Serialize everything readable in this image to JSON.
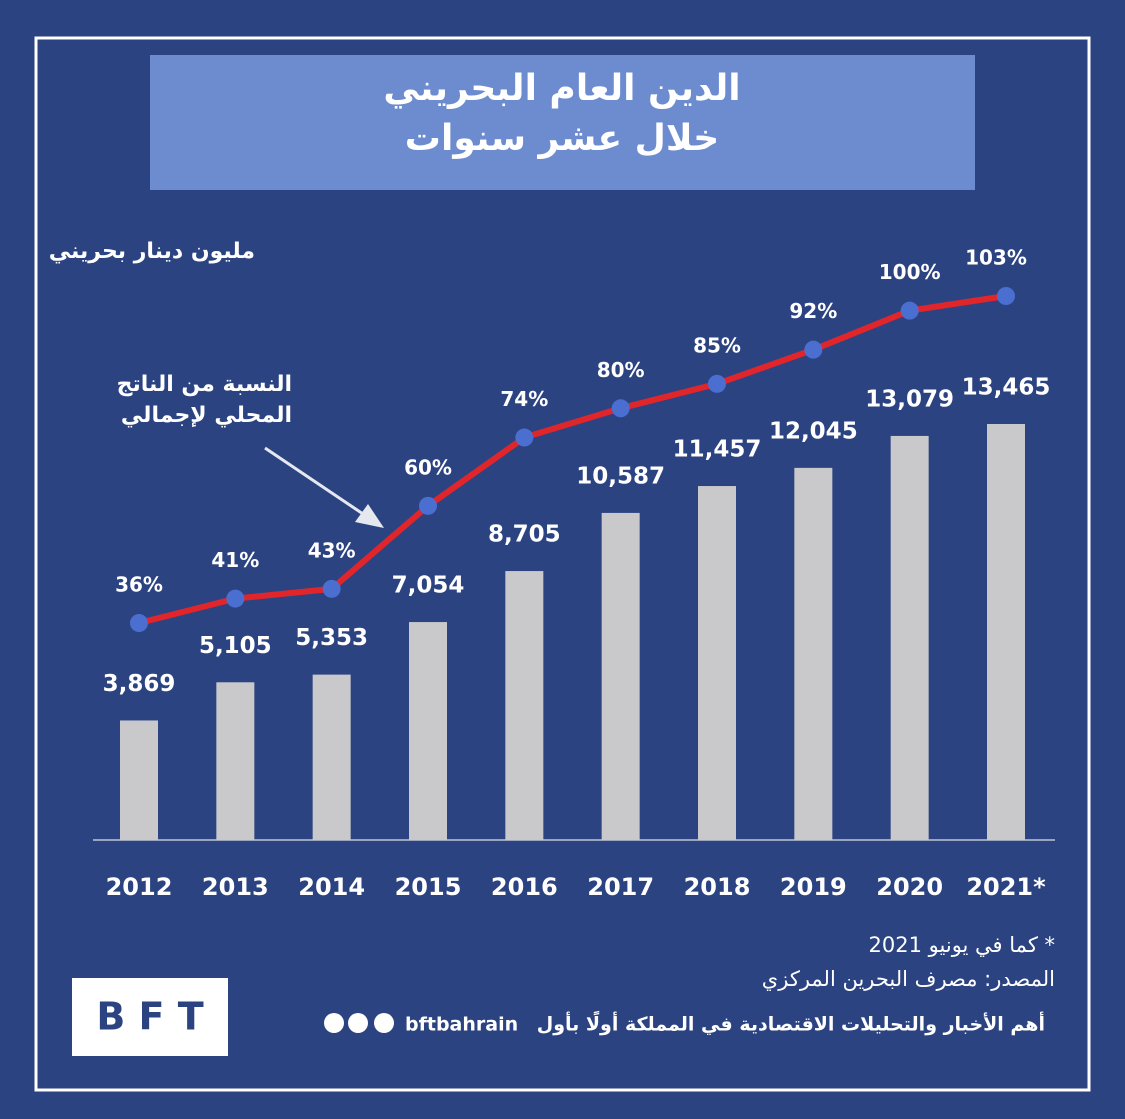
{
  "chart_data": {
    "type": "bar",
    "title": "الدين العام البحريني",
    "subtitle": "خلال عشر سنوات",
    "y_label": "مليون دينار بحريني",
    "annotation": [
      "النسبة من الناتج",
      "المحلي لإجمالي"
    ],
    "categories": [
      "2012",
      "2013",
      "2014",
      "2015",
      "2016",
      "2017",
      "2018",
      "2019",
      "2020",
      "2021*"
    ],
    "series": [
      {
        "type": "bar",
        "color": "#c9c9cc",
        "values": [
          3869,
          5105,
          5353,
          7054,
          8705,
          10587,
          11457,
          12045,
          13079,
          13465
        ],
        "value_labels": [
          "3,869",
          "5,105",
          "5,353",
          "7,054",
          "8,705",
          "10,587",
          "11,457",
          "12,045",
          "13,079",
          "13,465"
        ]
      },
      {
        "type": "line",
        "color": "#e0262b",
        "marker_color": "#4a6fd1",
        "values": [
          36,
          41,
          43,
          60,
          74,
          80,
          85,
          92,
          100,
          103
        ],
        "value_labels": [
          "36%",
          "41%",
          "43%",
          "60%",
          "74%",
          "80%",
          "85%",
          "92%",
          "100%",
          "103%"
        ]
      }
    ]
  },
  "footer": {
    "notes": [
      "* كما في يونيو 2021",
      "المصدر: مصرف البحرين المركزي"
    ],
    "tagline": "أهم الأخبار والتحليلات الاقتصادية في المملكة أولًا بأول",
    "handle": "bftbahrain",
    "logo": "B F T"
  }
}
